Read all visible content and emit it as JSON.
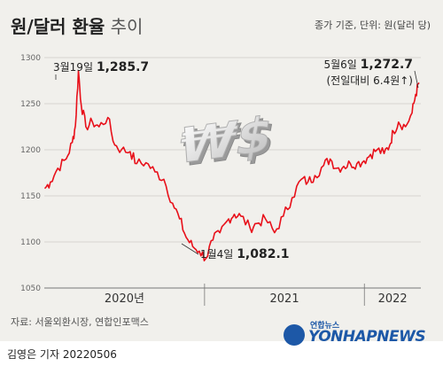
{
  "header": {
    "title_main": "원/달러 환율",
    "title_sub": "추이",
    "unit": "종가 기준, 단위: 원(달러 당)"
  },
  "annotations": {
    "peak_date": "3월19일",
    "peak_value": "1,285.7",
    "low_date": "1월4일",
    "low_value": "1,082.1",
    "latest_date": "5월6일",
    "latest_value": "1,272.7",
    "latest_change": "(전일대비 6.4원↑)"
  },
  "source": "자료: 서울외환시장, 연합인포맥스",
  "footer": {
    "byline": "김영은 기자  20220506"
  },
  "logo": {
    "brand": "YONHAPNEWS",
    "top": "연합뉴스",
    "symbol": "₩$"
  },
  "colors": {
    "line": "#e8101a",
    "background": "#f1f0ec",
    "brand": "#1d58a7"
  },
  "chart_data": {
    "type": "line",
    "ylim": [
      1050,
      1300
    ],
    "yticks": [
      "1050",
      "1100",
      "1150",
      "1200",
      "1250",
      "1300"
    ],
    "x_periods": [
      "2020년",
      "2021",
      "2022"
    ],
    "series": [
      {
        "x": [
          "2020-01-02",
          "2020-01-15",
          "2020-02-01",
          "2020-02-20",
          "2020-03-05",
          "2020-03-12",
          "2020-03-19",
          "2020-03-25",
          "2020-04-05",
          "2020-04-20",
          "2020-05-05",
          "2020-05-25",
          "2020-06-10",
          "2020-06-25",
          "2020-07-15",
          "2020-07-30",
          "2020-08-20",
          "2020-09-10",
          "2020-09-30",
          "2020-10-20",
          "2020-11-05",
          "2020-11-20",
          "2020-12-05",
          "2020-12-20",
          "2021-01-04",
          "2021-01-20",
          "2021-02-05",
          "2021-02-25",
          "2021-03-10",
          "2021-03-25",
          "2021-04-15",
          "2021-04-30",
          "2021-05-20",
          "2021-06-10",
          "2021-06-30",
          "2021-07-20",
          "2021-08-10",
          "2021-08-25",
          "2021-09-10",
          "2021-09-30",
          "2021-10-15",
          "2021-10-30",
          "2021-11-15",
          "2021-11-30",
          "2021-12-15",
          "2021-12-31",
          "2022-01-15",
          "2022-01-30",
          "2022-02-15",
          "2022-02-28",
          "2022-03-08",
          "2022-03-20",
          "2022-04-05",
          "2022-04-20",
          "2022-04-28",
          "2022-05-06"
        ],
        "values": [
          1158,
          1165,
          1180,
          1190,
          1208,
          1226,
          1285.7,
          1250,
          1225,
          1230,
          1225,
          1235,
          1205,
          1200,
          1198,
          1185,
          1186,
          1176,
          1168,
          1142,
          1125,
          1105,
          1095,
          1090,
          1082.1,
          1102,
          1110,
          1125,
          1130,
          1128,
          1115,
          1120,
          1125,
          1110,
          1128,
          1148,
          1168,
          1165,
          1172,
          1183,
          1190,
          1180,
          1182,
          1185,
          1185,
          1188,
          1195,
          1200,
          1196,
          1205,
          1220,
          1230,
          1225,
          1240,
          1260,
          1272.7
        ]
      }
    ]
  }
}
